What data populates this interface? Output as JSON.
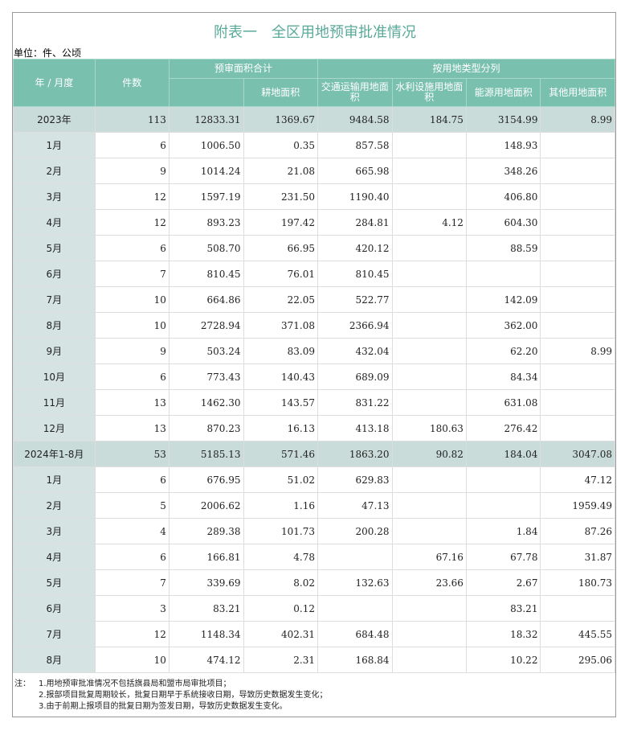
{
  "header": {
    "title": "附表一　全区用地预审批准情况",
    "unit": "单位：件、公顷"
  },
  "table": {
    "columns": {
      "period": "年 / 月度",
      "count": "件数",
      "total_group": "预审面积合计",
      "total": null,
      "farmland": "耕地面积",
      "type_group": "按用地类型分列",
      "transport": "交通运输用地面积",
      "water": "水利设施用地面积",
      "energy": "能源用地面积",
      "other": "其他用地面积"
    },
    "groups": [
      {
        "summary": [
          "2023年",
          "113",
          "12833.31",
          "1369.67",
          "9484.58",
          "184.75",
          "3154.99",
          "8.99"
        ],
        "rows": [
          [
            "1月",
            "6",
            "1006.50",
            "0.35",
            "857.58",
            null,
            "148.93",
            null
          ],
          [
            "2月",
            "9",
            "1014.24",
            "21.08",
            "665.98",
            null,
            "348.26",
            null
          ],
          [
            "3月",
            "12",
            "1597.19",
            "231.50",
            "1190.40",
            null,
            "406.80",
            null
          ],
          [
            "4月",
            "12",
            "893.23",
            "197.42",
            "284.81",
            "4.12",
            "604.30",
            null
          ],
          [
            "5月",
            "6",
            "508.70",
            "66.95",
            "420.12",
            null,
            "88.59",
            null
          ],
          [
            "6月",
            "7",
            "810.45",
            "76.01",
            "810.45",
            null,
            null,
            null
          ],
          [
            "7月",
            "10",
            "664.86",
            "22.05",
            "522.77",
            null,
            "142.09",
            null
          ],
          [
            "8月",
            "10",
            "2728.94",
            "371.08",
            "2366.94",
            null,
            "362.00",
            null
          ],
          [
            "9月",
            "9",
            "503.24",
            "83.09",
            "432.04",
            null,
            "62.20",
            "8.99"
          ],
          [
            "10月",
            "6",
            "773.43",
            "140.43",
            "689.09",
            null,
            "84.34",
            null
          ],
          [
            "11月",
            "13",
            "1462.30",
            "143.57",
            "831.22",
            null,
            "631.08",
            null
          ],
          [
            "12月",
            "13",
            "870.23",
            "16.13",
            "413.18",
            "180.63",
            "276.42",
            null
          ]
        ]
      },
      {
        "summary": [
          "2024年1-8月",
          "53",
          "5185.13",
          "571.46",
          "1863.20",
          "90.82",
          "184.04",
          "3047.08"
        ],
        "rows": [
          [
            "1月",
            "6",
            "676.95",
            "51.02",
            "629.83",
            null,
            null,
            "47.12"
          ],
          [
            "2月",
            "5",
            "2006.62",
            "1.16",
            "47.13",
            null,
            null,
            "1959.49"
          ],
          [
            "3月",
            "4",
            "289.38",
            "101.73",
            "200.28",
            null,
            "1.84",
            "87.26"
          ],
          [
            "4月",
            "6",
            "166.81",
            "4.78",
            null,
            "67.16",
            "67.78",
            "31.87"
          ],
          [
            "5月",
            "7",
            "339.69",
            "8.02",
            "132.63",
            "23.66",
            "2.67",
            "180.73"
          ],
          [
            "6月",
            "3",
            "83.21",
            "0.12",
            null,
            null,
            "83.21",
            null
          ],
          [
            "7月",
            "12",
            "1148.34",
            "402.31",
            "684.48",
            null,
            "18.32",
            "445.55"
          ],
          [
            "8月",
            "10",
            "474.12",
            "2.31",
            "168.84",
            null,
            "10.22",
            "295.06"
          ]
        ]
      }
    ]
  },
  "notes": {
    "label": "注：",
    "items": [
      "1.用地预审批准情况不包括旗县局和盟市局审批项目；",
      "2.报部项目批复周期较长，批复日期早于系统接收日期，导致历史数据发生变化；",
      "3.由于前期上报项目的批复日期为签发日期，导致历史数据发生变化。"
    ]
  }
}
